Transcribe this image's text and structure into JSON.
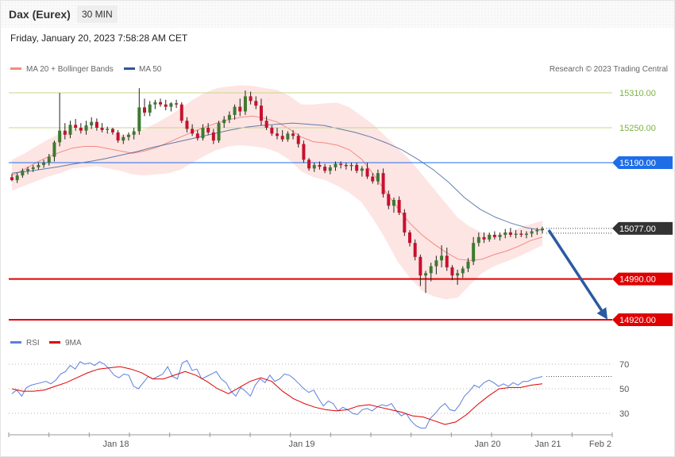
{
  "header": {
    "title": "Dax (Eurex)",
    "interval": "30 MIN",
    "timestamp": "Friday, January 20, 2023 7:58:28 AM CET"
  },
  "legend": {
    "items": [
      {
        "label": "MA 20 + Bollinger Bands",
        "color": "#f28b82"
      },
      {
        "label": "MA 50",
        "color": "#2f5597"
      }
    ],
    "credit": "Research © 2023 Trading Central"
  },
  "rsi_legend": {
    "items": [
      {
        "label": "RSI",
        "color": "#5b7fdc"
      },
      {
        "label": "9MA",
        "color": "#e00000"
      }
    ]
  },
  "levels": [
    {
      "value": 15310.0,
      "label": "15310.00",
      "style": "resistance-line",
      "color": "#7cb342"
    },
    {
      "value": 15250.0,
      "label": "15250.00",
      "style": "resistance-line",
      "color": "#7cb342"
    },
    {
      "value": 15190.0,
      "label": "15190.00",
      "style": "pivot-badge",
      "color": "#1e6ee8"
    },
    {
      "value": 15077.0,
      "label": "15077.00",
      "style": "last-price-badge",
      "color": "#333333"
    },
    {
      "value": 14990.0,
      "label": "14990.00",
      "style": "support-badge",
      "color": "#e00000"
    },
    {
      "value": 14920.0,
      "label": "14920.00",
      "style": "support-badge",
      "color": "#e00000"
    }
  ],
  "chart_data": [
    {
      "type": "candlestick",
      "title": "Dax (Eurex)",
      "timeframe": "30 MIN",
      "x_ticks": [
        "Jan 18",
        "Jan 19",
        "Jan 20",
        "Jan 21",
        "Feb 2"
      ],
      "ylim": [
        14900,
        15330
      ],
      "candles": [
        [
          15165,
          15171,
          15158,
          15160
        ],
        [
          15160,
          15172,
          15155,
          15168
        ],
        [
          15168,
          15180,
          15164,
          15176
        ],
        [
          15176,
          15183,
          15170,
          15179
        ],
        [
          15179,
          15186,
          15174,
          15182
        ],
        [
          15182,
          15190,
          15178,
          15186
        ],
        [
          15186,
          15195,
          15181,
          15190
        ],
        [
          15190,
          15205,
          15185,
          15200
        ],
        [
          15200,
          15228,
          15192,
          15225
        ],
        [
          15225,
          15310,
          15218,
          15245
        ],
        [
          15245,
          15258,
          15230,
          15238
        ],
        [
          15238,
          15262,
          15232,
          15255
        ],
        [
          15255,
          15265,
          15245,
          15250
        ],
        [
          15250,
          15258,
          15240,
          15245
        ],
        [
          15245,
          15262,
          15238,
          15254
        ],
        [
          15254,
          15268,
          15248,
          15260
        ],
        [
          15260,
          15266,
          15245,
          15250
        ],
        [
          15250,
          15258,
          15242,
          15246
        ],
        [
          15246,
          15252,
          15240,
          15248
        ],
        [
          15248,
          15250,
          15238,
          15242
        ],
        [
          15242,
          15246,
          15224,
          15228
        ],
        [
          15228,
          15238,
          15222,
          15234
        ],
        [
          15234,
          15242,
          15228,
          15238
        ],
        [
          15238,
          15250,
          15230,
          15244
        ],
        [
          15244,
          15318,
          15238,
          15285
        ],
        [
          15285,
          15300,
          15270,
          15276
        ],
        [
          15276,
          15296,
          15270,
          15290
        ],
        [
          15290,
          15298,
          15282,
          15294
        ],
        [
          15294,
          15300,
          15286,
          15290
        ],
        [
          15290,
          15298,
          15280,
          15286
        ],
        [
          15286,
          15294,
          15278,
          15292
        ],
        [
          15292,
          15298,
          15284,
          15290
        ],
        [
          15290,
          15294,
          15258,
          15262
        ],
        [
          15262,
          15268,
          15242,
          15248
        ],
        [
          15248,
          15256,
          15236,
          15240
        ],
        [
          15240,
          15246,
          15228,
          15232
        ],
        [
          15232,
          15256,
          15228,
          15250
        ],
        [
          15250,
          15258,
          15238,
          15242
        ],
        [
          15242,
          15248,
          15222,
          15228
        ],
        [
          15228,
          15262,
          15224,
          15258
        ],
        [
          15258,
          15270,
          15250,
          15264
        ],
        [
          15264,
          15278,
          15258,
          15272
        ],
        [
          15272,
          15290,
          15264,
          15286
        ],
        [
          15286,
          15300,
          15270,
          15278
        ],
        [
          15278,
          15314,
          15272,
          15304
        ],
        [
          15304,
          15312,
          15290,
          15296
        ],
        [
          15296,
          15304,
          15282,
          15288
        ],
        [
          15288,
          15300,
          15254,
          15262
        ],
        [
          15262,
          15270,
          15246,
          15250
        ],
        [
          15250,
          15254,
          15236,
          15240
        ],
        [
          15240,
          15250,
          15230,
          15236
        ],
        [
          15236,
          15246,
          15226,
          15230
        ],
        [
          15230,
          15244,
          15226,
          15240
        ],
        [
          15240,
          15246,
          15230,
          15236
        ],
        [
          15236,
          15240,
          15216,
          15222
        ],
        [
          15222,
          15228,
          15190,
          15195
        ],
        [
          15195,
          15198,
          15176,
          15180
        ],
        [
          15180,
          15190,
          15174,
          15186
        ],
        [
          15186,
          15192,
          15178,
          15183
        ],
        [
          15183,
          15188,
          15172,
          15176
        ],
        [
          15176,
          15186,
          15170,
          15182
        ],
        [
          15182,
          15192,
          15176,
          15188
        ],
        [
          15188,
          15192,
          15180,
          15186
        ],
        [
          15186,
          15190,
          15178,
          15184
        ],
        [
          15184,
          15190,
          15176,
          15186
        ],
        [
          15186,
          15190,
          15172,
          15176
        ],
        [
          15176,
          15184,
          15166,
          15180
        ],
        [
          15180,
          15190,
          15162,
          15166
        ],
        [
          15166,
          15172,
          15154,
          15158
        ],
        [
          15158,
          15178,
          15152,
          15172
        ],
        [
          15172,
          15180,
          15130,
          15136
        ],
        [
          15136,
          15142,
          15110,
          15116
        ],
        [
          15116,
          15130,
          15104,
          15126
        ],
        [
          15126,
          15132,
          15100,
          15104
        ],
        [
          15104,
          15110,
          15064,
          15070
        ],
        [
          15070,
          15074,
          15046,
          15052
        ],
        [
          15052,
          15058,
          15022,
          15028
        ],
        [
          15028,
          15032,
          14978,
          14996
        ],
        [
          14996,
          15004,
          14966,
          15000
        ],
        [
          15000,
          15018,
          14986,
          15012
        ],
        [
          15012,
          15030,
          14998,
          15022
        ],
        [
          15022,
          15048,
          15010,
          15030
        ],
        [
          15030,
          15044,
          15004,
          15010
        ],
        [
          15010,
          15014,
          14988,
          14996
        ],
        [
          14996,
          15006,
          14980,
          15000
        ],
        [
          15000,
          15012,
          14992,
          15008
        ],
        [
          15008,
          15026,
          15002,
          15020
        ],
        [
          15020,
          15062,
          15014,
          15052
        ],
        [
          15052,
          15070,
          15046,
          15062
        ],
        [
          15062,
          15070,
          15052,
          15058
        ],
        [
          15058,
          15070,
          15054,
          15066
        ],
        [
          15066,
          15072,
          15058,
          15062
        ],
        [
          15062,
          15070,
          15056,
          15066
        ],
        [
          15066,
          15076,
          15060,
          15070
        ],
        [
          15070,
          15078,
          15062,
          15066
        ],
        [
          15066,
          15074,
          15060,
          15068
        ],
        [
          15068,
          15074,
          15062,
          15066
        ],
        [
          15066,
          15072,
          15060,
          15068
        ],
        [
          15068,
          15076,
          15062,
          15072
        ],
        [
          15072,
          15078,
          15066,
          15074
        ],
        [
          15074,
          15080,
          15068,
          15077
        ]
      ],
      "bb_upper": [
        15195,
        15205,
        15218,
        15230,
        15240,
        15247,
        15250,
        15248,
        15243,
        15238,
        15240,
        15248,
        15258,
        15270,
        15283,
        15298,
        15310,
        15318,
        15321,
        15323,
        15322,
        15318,
        15315,
        15305,
        15290,
        15290,
        15292,
        15293,
        15285,
        15270,
        15255,
        15235,
        15215,
        15195,
        15170,
        15145,
        15120,
        15095,
        15080,
        15070,
        15065,
        15070,
        15077,
        15084,
        15090
      ],
      "bb_lower": [
        15142,
        15150,
        15158,
        15166,
        15172,
        15180,
        15182,
        15184,
        15180,
        15176,
        15170,
        15168,
        15170,
        15172,
        15178,
        15190,
        15202,
        15212,
        15218,
        15220,
        15218,
        15215,
        15208,
        15195,
        15175,
        15165,
        15160,
        15150,
        15138,
        15122,
        15092,
        15058,
        15020,
        14992,
        14970,
        14960,
        14955,
        14958,
        14980,
        15000,
        15012,
        15020,
        15028,
        15038,
        15048
      ],
      "ma20": [
        15168,
        15178,
        15190,
        15200,
        15208,
        15215,
        15218,
        15218,
        15214,
        15210,
        15206,
        15210,
        15216,
        15225,
        15234,
        15243,
        15251,
        15258,
        15264,
        15268,
        15270,
        15266,
        15260,
        15248,
        15234,
        15226,
        15224,
        15220,
        15212,
        15196,
        15170,
        15140,
        15112,
        15086,
        15066,
        15050,
        15036,
        15024,
        15022,
        15024,
        15032,
        15038,
        15046,
        15056,
        15062
      ],
      "ma50": [
        15172,
        15175,
        15179,
        15183,
        15188,
        15192,
        15197,
        15203,
        15209,
        15216,
        15222,
        15228,
        15234,
        15240,
        15246,
        15251,
        15254,
        15256,
        15258,
        15256,
        15254,
        15248,
        15242,
        15234,
        15224,
        15212,
        15196,
        15178,
        15156,
        15130,
        15110,
        15096,
        15086,
        15078,
        15074
      ],
      "rsi": [
        46,
        49,
        44,
        51,
        53,
        54,
        55,
        56,
        54,
        57,
        62,
        64,
        69,
        66,
        72,
        70,
        71,
        69,
        72,
        70,
        66,
        61,
        59,
        62,
        61,
        52,
        50,
        55,
        60,
        58,
        60,
        62,
        68,
        60,
        58,
        71,
        73,
        65,
        66,
        58,
        60,
        62,
        64,
        58,
        55,
        48,
        44,
        51,
        48,
        44,
        53,
        58,
        55,
        61,
        56,
        58,
        62,
        61,
        58,
        54,
        50,
        47,
        49,
        42,
        36,
        40,
        38,
        32,
        35,
        33,
        30,
        29,
        33,
        34,
        32,
        35,
        37,
        36,
        38,
        32,
        28,
        30,
        24,
        20,
        18,
        18,
        26,
        30,
        35,
        38,
        33,
        32,
        37,
        44,
        48,
        53,
        51,
        55,
        57,
        55,
        52,
        54,
        52,
        55,
        53,
        56,
        56,
        58,
        59,
        60
      ],
      "rsi_ma": [
        50,
        48,
        48,
        49,
        52,
        55,
        59,
        63,
        66,
        67,
        68,
        66,
        63,
        58,
        58,
        61,
        64,
        61,
        56,
        50,
        46,
        51,
        56,
        59,
        56,
        48,
        42,
        38,
        35,
        33,
        32,
        33,
        36,
        37,
        35,
        33,
        31,
        28,
        27,
        24,
        21,
        23,
        29,
        37,
        44,
        50,
        51,
        51,
        53,
        54
      ],
      "rsi_levels": [
        30,
        50,
        70
      ]
    }
  ]
}
